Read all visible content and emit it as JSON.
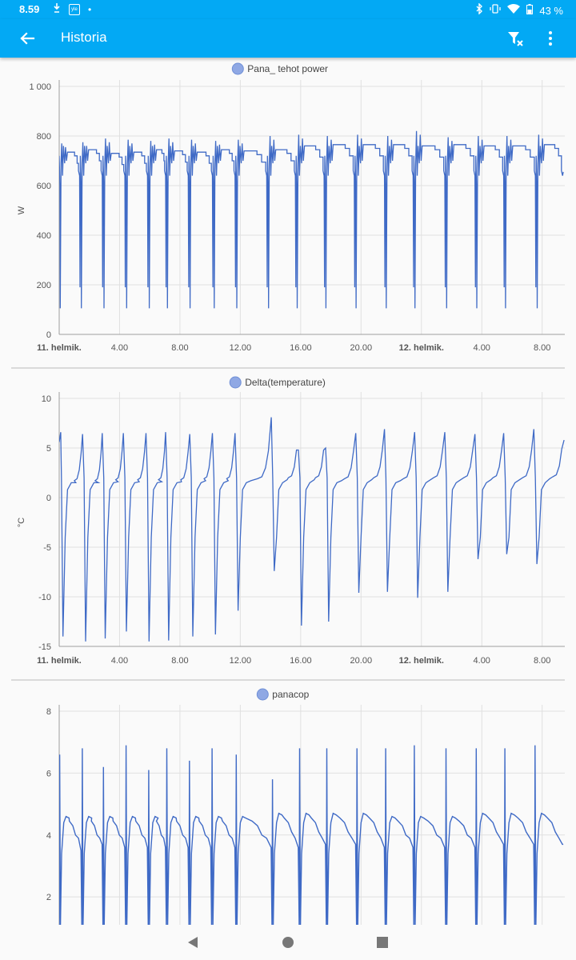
{
  "status": {
    "time": "8.59",
    "battery": "43 %",
    "left_icons": [
      "cast-icon",
      "yle-icon",
      "dot-icon"
    ],
    "right_icons": [
      "bluetooth-icon",
      "vibrate-icon",
      "wifi-icon",
      "battery-icon"
    ]
  },
  "appbar": {
    "title": "Historia",
    "back_icon": "arrow-left-icon",
    "filter_icon": "filter-remove-icon",
    "more_icon": "more-vert-icon"
  },
  "colors": {
    "accent": "#03a9f4",
    "line": "#3f6ac6",
    "legend_dot": "#8fa8e4",
    "grid": "#e0e0e0",
    "text": "#555555"
  },
  "chart_data": [
    {
      "type": "line",
      "title": "Pana_ tehot power",
      "xlabel": "",
      "ylabel": "W",
      "ylim": [
        0,
        1000
      ],
      "yticks": [
        "0",
        "200",
        "400",
        "600",
        "800",
        "1 000"
      ],
      "ytick_values": [
        0,
        200,
        400,
        600,
        800,
        1000
      ],
      "xticks": [
        "11. helmik.",
        "4.00",
        "8.00",
        "12.00",
        "16.00",
        "20.00",
        "12. helmik.",
        "4.00",
        "8.00"
      ],
      "xtick_hours": [
        0,
        4,
        8,
        12,
        16,
        20,
        24,
        28,
        32
      ],
      "xlim_hours": [
        0,
        33.5
      ],
      "cycle_hours": [
        0,
        1.4,
        2.9,
        4.4,
        5.9,
        7.1,
        8.6,
        10.2,
        11.7,
        13.8,
        15.7,
        17.6,
        19.6,
        21.6,
        23.5,
        25.6,
        27.6,
        29.5,
        31.6
      ],
      "series": [
        {
          "name": "Pana_ tehot power",
          "plateau": [
            735,
            745,
            730,
            735,
            745,
            740,
            735,
            745,
            740,
            745,
            760,
            765,
            765,
            765,
            760,
            765,
            760,
            760,
            765
          ],
          "spike_max": [
            770,
            775,
            790,
            785,
            780,
            790,
            785,
            780,
            785,
            800,
            805,
            800,
            805,
            800,
            820,
            795,
            800,
            800,
            805
          ],
          "dip_min": [
            105,
            105,
            105,
            105,
            105,
            105,
            105,
            105,
            105,
            105,
            105,
            105,
            105,
            105,
            105,
            105,
            105,
            105,
            105
          ],
          "end_value": 655
        }
      ]
    },
    {
      "type": "line",
      "title": "Delta(temperature)",
      "xlabel": "",
      "ylabel": "°C",
      "ylim": [
        -15,
        10
      ],
      "yticks": [
        "-15",
        "-10",
        "-5",
        "0",
        "5",
        "10"
      ],
      "ytick_values": [
        -15,
        -10,
        -5,
        0,
        5,
        10
      ],
      "xticks": [
        "11. helmik.",
        "4.00",
        "8.00",
        "12.00",
        "16.00",
        "20.00",
        "12. helmik.",
        "4.00",
        "8.00"
      ],
      "xtick_hours": [
        0,
        4,
        8,
        12,
        16,
        20,
        24,
        28,
        32
      ],
      "xlim_hours": [
        0,
        33.5
      ],
      "cycle_hours": [
        0.1,
        1.6,
        2.9,
        4.3,
        5.8,
        7.1,
        8.7,
        10.2,
        11.7,
        14.1,
        15.9,
        17.7,
        19.7,
        21.6,
        23.6,
        25.6,
        27.6,
        29.5,
        31.5
      ],
      "series": [
        {
          "name": "Delta(temperature)",
          "peak": [
            6.6,
            6.4,
            6.5,
            6.5,
            6.5,
            6.6,
            6.4,
            6.5,
            6.5,
            8.1,
            4.8,
            5.0,
            6.5,
            6.9,
            6.6,
            6.6,
            6.4,
            6.5,
            6.9
          ],
          "trough": [
            -14.0,
            -14.5,
            -14.2,
            -13.5,
            -14.5,
            -14.4,
            -14.0,
            -13.8,
            -11.4,
            -7.4,
            -12.9,
            -12.5,
            -9.6,
            -9.5,
            -10.1,
            -9.5,
            -6.2,
            -5.7,
            -6.7
          ],
          "plateau": [
            1.5,
            1.5,
            1.6,
            1.6,
            1.6,
            1.6,
            1.7,
            1.7,
            1.7,
            1.8,
            1.8,
            1.7,
            1.8,
            1.7,
            1.8,
            1.8,
            1.8,
            1.8,
            1.9
          ],
          "end_value": 5.8
        }
      ]
    },
    {
      "type": "line",
      "title": "panacop",
      "xlabel": "",
      "ylabel": "",
      "ylim": [
        1.1,
        8
      ],
      "yticks": [
        "2",
        "4",
        "6",
        "8"
      ],
      "ytick_values": [
        2,
        4,
        6,
        8
      ],
      "xlim_hours": [
        0,
        33.5
      ],
      "xtick_hours": [
        0,
        4,
        8,
        12,
        16,
        20,
        24,
        28,
        32
      ],
      "cycle_hours": [
        0,
        1.5,
        2.9,
        4.4,
        5.9,
        7.1,
        8.6,
        10.1,
        11.7,
        14.1,
        15.9,
        17.7,
        19.7,
        21.6,
        23.5,
        25.6,
        27.6,
        29.5,
        31.5
      ],
      "series": [
        {
          "name": "panacop",
          "spike": [
            6.6,
            6.8,
            6.2,
            6.9,
            6.1,
            6.8,
            6.4,
            6.8,
            6.6,
            5.8,
            6.8,
            6.8,
            6.8,
            6.8,
            6.9,
            6.8,
            6.8,
            6.8,
            6.9
          ],
          "plateau": [
            4.6,
            4.6,
            4.6,
            4.6,
            4.6,
            4.6,
            4.6,
            4.6,
            4.6,
            4.7,
            4.7,
            4.7,
            4.7,
            4.6,
            4.6,
            4.6,
            4.7,
            4.7,
            4.7
          ],
          "low": [
            3.5,
            3.7,
            3.6,
            3.6,
            3.6,
            3.6,
            3.6,
            3.6,
            3.6,
            3.6,
            3.7,
            3.7,
            3.6,
            3.6,
            3.6,
            3.6,
            3.7,
            3.7,
            3.7
          ],
          "end_value": 3.7
        }
      ]
    }
  ],
  "navbar": {
    "back": "nav-back-icon",
    "home": "nav-home-icon",
    "recents": "nav-recents-icon"
  }
}
